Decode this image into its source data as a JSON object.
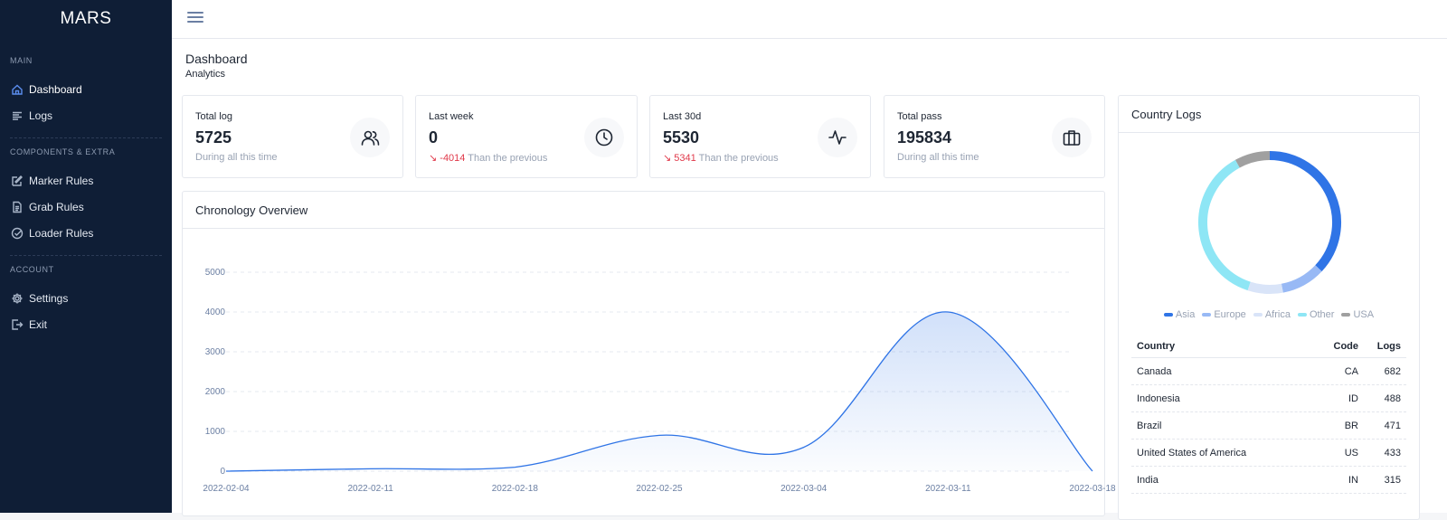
{
  "app": {
    "brand": "MARS"
  },
  "sidebar": {
    "sections": [
      {
        "title": "MAIN",
        "items": [
          {
            "label": "Dashboard",
            "icon": "home-icon",
            "active": true
          },
          {
            "label": "Logs",
            "icon": "list-icon"
          }
        ]
      },
      {
        "title": "COMPONENTS & EXTRA",
        "items": [
          {
            "label": "Marker Rules",
            "icon": "edit-icon"
          },
          {
            "label": "Grab Rules",
            "icon": "file-icon"
          },
          {
            "label": "Loader Rules",
            "icon": "check-circle-icon"
          }
        ]
      },
      {
        "title": "ACCOUNT",
        "items": [
          {
            "label": "Settings",
            "icon": "gear-icon"
          },
          {
            "label": "Exit",
            "icon": "logout-icon"
          }
        ]
      }
    ]
  },
  "header": {
    "title": "Dashboard",
    "subtitle": "Analytics"
  },
  "stats": [
    {
      "label": "Total log",
      "value": "5725",
      "note": "During all this time",
      "icon": "users-icon"
    },
    {
      "label": "Last week",
      "value": "0",
      "delta": "-4014",
      "note": "Than the previous",
      "icon": "clock-icon"
    },
    {
      "label": "Last 30d",
      "value": "5530",
      "delta": "5341",
      "note": "Than the previous",
      "icon": "activity-icon"
    },
    {
      "label": "Total pass",
      "value": "195834",
      "note": "During all this time",
      "icon": "briefcase-icon"
    }
  ],
  "chronology": {
    "title": "Chronology Overview",
    "chart_data": {
      "type": "area",
      "x": [
        "2022-02-04",
        "2022-02-11",
        "2022-02-18",
        "2022-02-25",
        "2022-03-04",
        "2022-03-11",
        "2022-03-18"
      ],
      "values": [
        0,
        60,
        100,
        900,
        600,
        4000,
        0
      ],
      "yticks": [
        0,
        1000,
        2000,
        3000,
        4000,
        5000
      ],
      "ylim": [
        0,
        5000
      ],
      "grid": true,
      "color": "#2f74e6"
    }
  },
  "country": {
    "title": "Country Logs",
    "chart_data": {
      "type": "pie",
      "categories": [
        "Asia",
        "Europe",
        "Africa",
        "Other",
        "USA"
      ],
      "values": [
        37,
        10,
        8,
        37,
        8
      ],
      "colors": [
        "#2f74e6",
        "#98b9f5",
        "#d9e4f8",
        "#8ee6f5",
        "#a0a0a0"
      ],
      "legend": "bottom"
    },
    "table": {
      "headers": [
        "Country",
        "Code",
        "Logs"
      ],
      "rows": [
        [
          "Canada",
          "CA",
          "682"
        ],
        [
          "Indonesia",
          "ID",
          "488"
        ],
        [
          "Brazil",
          "BR",
          "471"
        ],
        [
          "United States of America",
          "US",
          "433"
        ],
        [
          "India",
          "IN",
          "315"
        ]
      ]
    }
  }
}
